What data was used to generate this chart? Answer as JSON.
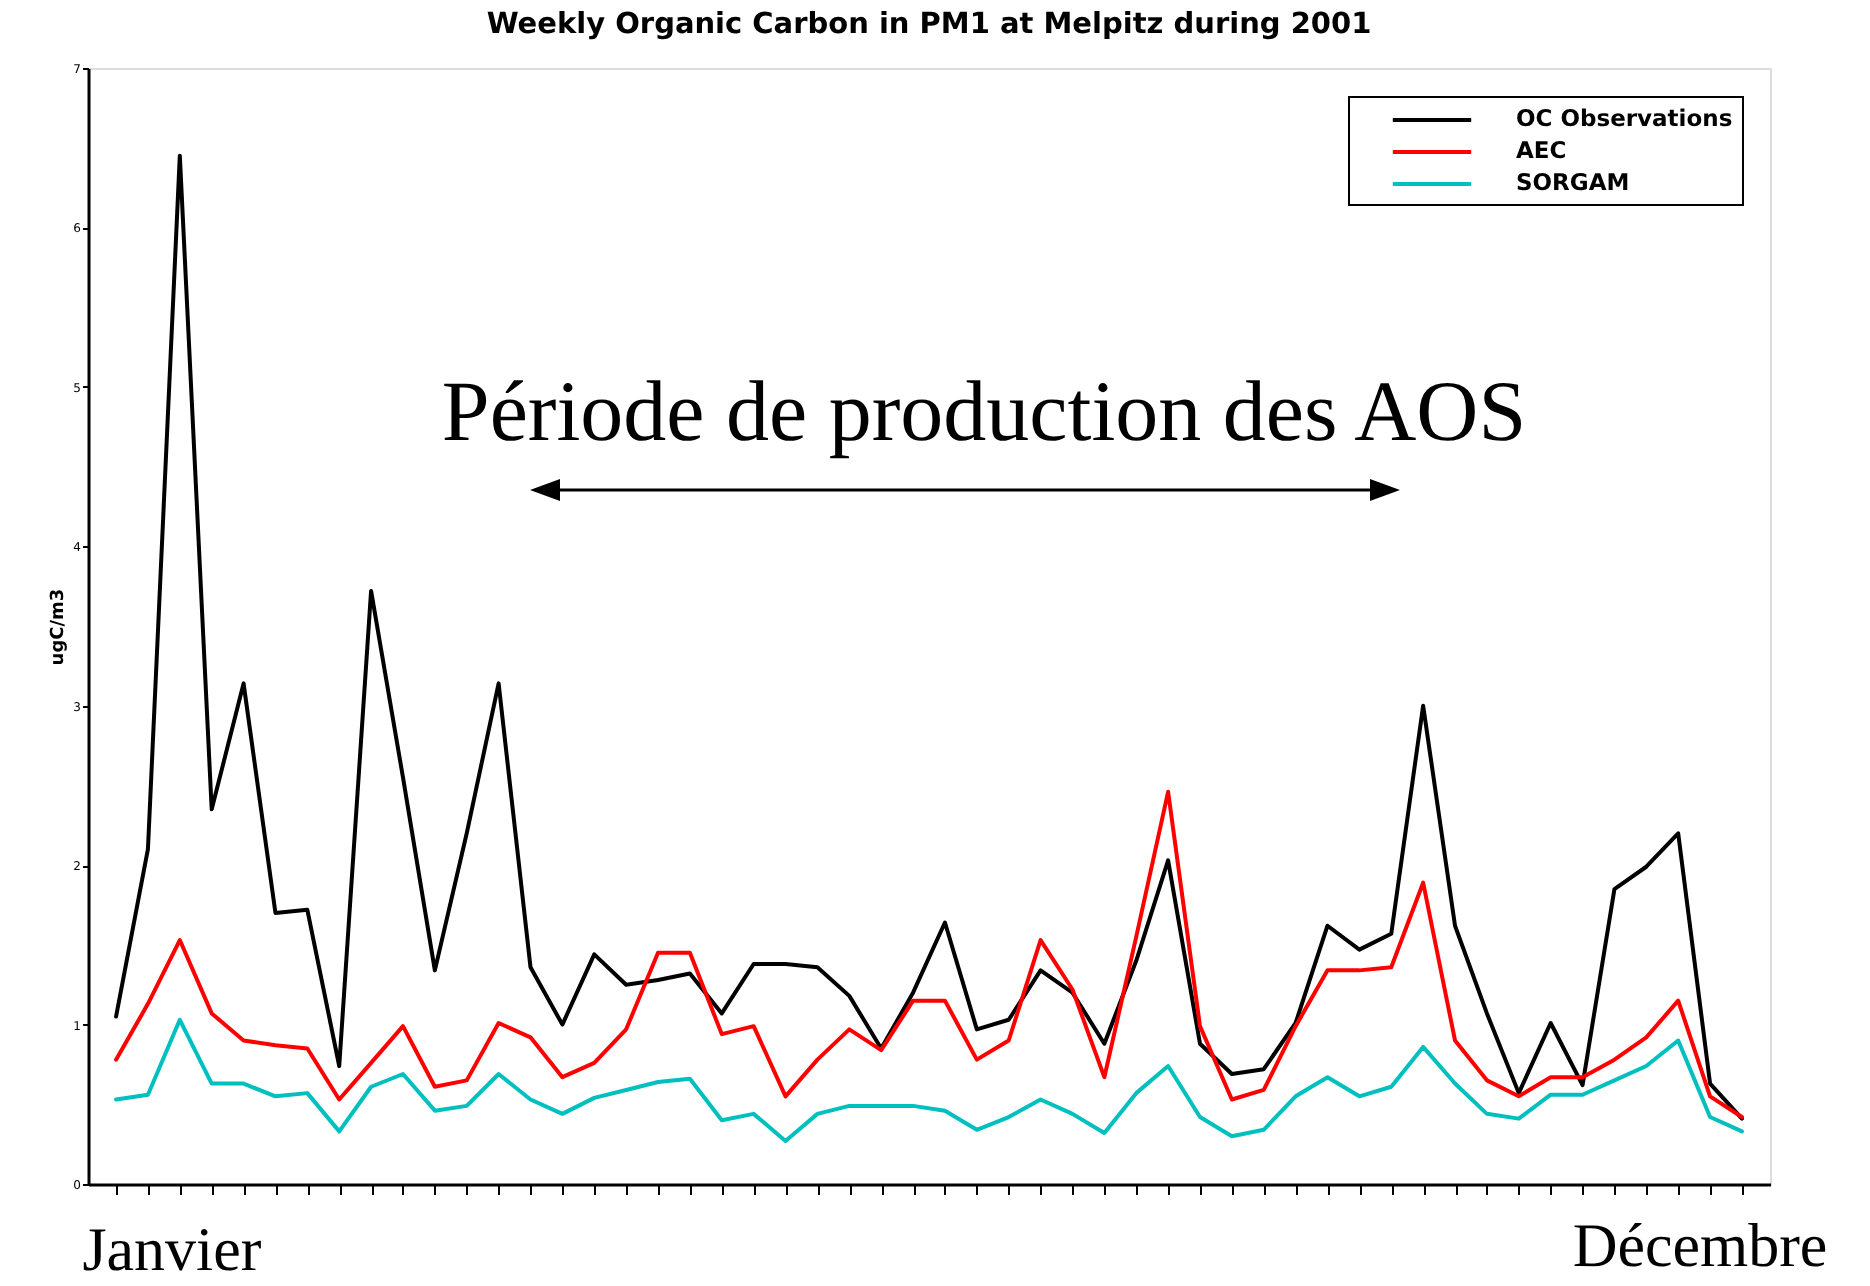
{
  "chart_data": {
    "type": "line",
    "title": "Weekly Organic Carbon in PM1 at Melpitz during 2001",
    "ylabel": "ugC/m3",
    "categories": [
      null,
      null,
      null,
      null,
      null,
      null,
      null,
      null,
      null,
      null,
      null,
      null,
      null,
      null,
      null,
      null,
      null,
      null,
      null,
      null,
      null,
      null,
      null,
      null,
      null,
      null,
      null,
      null,
      null,
      null,
      null,
      null,
      null,
      null,
      null,
      null,
      null,
      null,
      null,
      null,
      null,
      null,
      null,
      null,
      null,
      null,
      null,
      null,
      null,
      null,
      null,
      null
    ],
    "ylim": [
      0,
      7
    ],
    "yticks": [
      0,
      1,
      2,
      3,
      4,
      5,
      6,
      7
    ],
    "grid": false,
    "legend": "top right",
    "annotations": [
      "Période de production des AOS",
      "Janvier",
      "Décembre"
    ],
    "series": [
      {
        "name": "OC Observations",
        "color": "#000000",
        "values": [
          1.05,
          2.1,
          6.45,
          2.35,
          3.14,
          1.7,
          1.72,
          0.74,
          3.72,
          2.55,
          1.34,
          2.2,
          3.14,
          1.36,
          1.0,
          1.44,
          1.25,
          1.28,
          1.32,
          1.07,
          1.38,
          1.38,
          1.36,
          1.18,
          0.85,
          1.2,
          1.64,
          0.97,
          1.03,
          1.34,
          1.2,
          0.88,
          1.4,
          2.03,
          0.88,
          0.69,
          0.72,
          1.01,
          1.62,
          1.47,
          1.57,
          3.0,
          1.62,
          1.07,
          0.57,
          1.01,
          0.62,
          1.85,
          1.99,
          2.2,
          0.63,
          0.41
        ]
      },
      {
        "name": "AEC",
        "color": "#ff0000",
        "values": [
          0.78,
          1.13,
          1.53,
          1.07,
          0.9,
          0.87,
          0.85,
          0.53,
          0.76,
          0.99,
          0.61,
          0.65,
          1.01,
          0.92,
          0.67,
          0.76,
          0.97,
          1.45,
          1.45,
          0.94,
          0.99,
          0.55,
          0.78,
          0.97,
          0.84,
          1.15,
          1.15,
          0.78,
          0.9,
          1.53,
          1.22,
          0.67,
          1.55,
          2.46,
          0.99,
          0.53,
          0.59,
          0.99,
          1.34,
          1.34,
          1.36,
          1.89,
          0.9,
          0.65,
          0.55,
          0.67,
          0.67,
          0.78,
          0.92,
          1.15,
          0.55,
          0.42
        ]
      },
      {
        "name": "SORGAM",
        "color": "#00bfbf",
        "values": [
          0.53,
          0.56,
          1.03,
          0.63,
          0.63,
          0.55,
          0.57,
          0.33,
          0.61,
          0.69,
          0.46,
          0.49,
          0.69,
          0.53,
          0.44,
          0.54,
          0.59,
          0.64,
          0.66,
          0.4,
          0.44,
          0.27,
          0.44,
          0.49,
          0.49,
          0.49,
          0.46,
          0.34,
          0.42,
          0.53,
          0.44,
          0.32,
          0.57,
          0.74,
          0.42,
          0.3,
          0.34,
          0.55,
          0.67,
          0.55,
          0.61,
          0.86,
          0.63,
          0.44,
          0.41,
          0.56,
          0.56,
          0.65,
          0.74,
          0.9,
          0.42,
          0.33
        ]
      }
    ]
  }
}
